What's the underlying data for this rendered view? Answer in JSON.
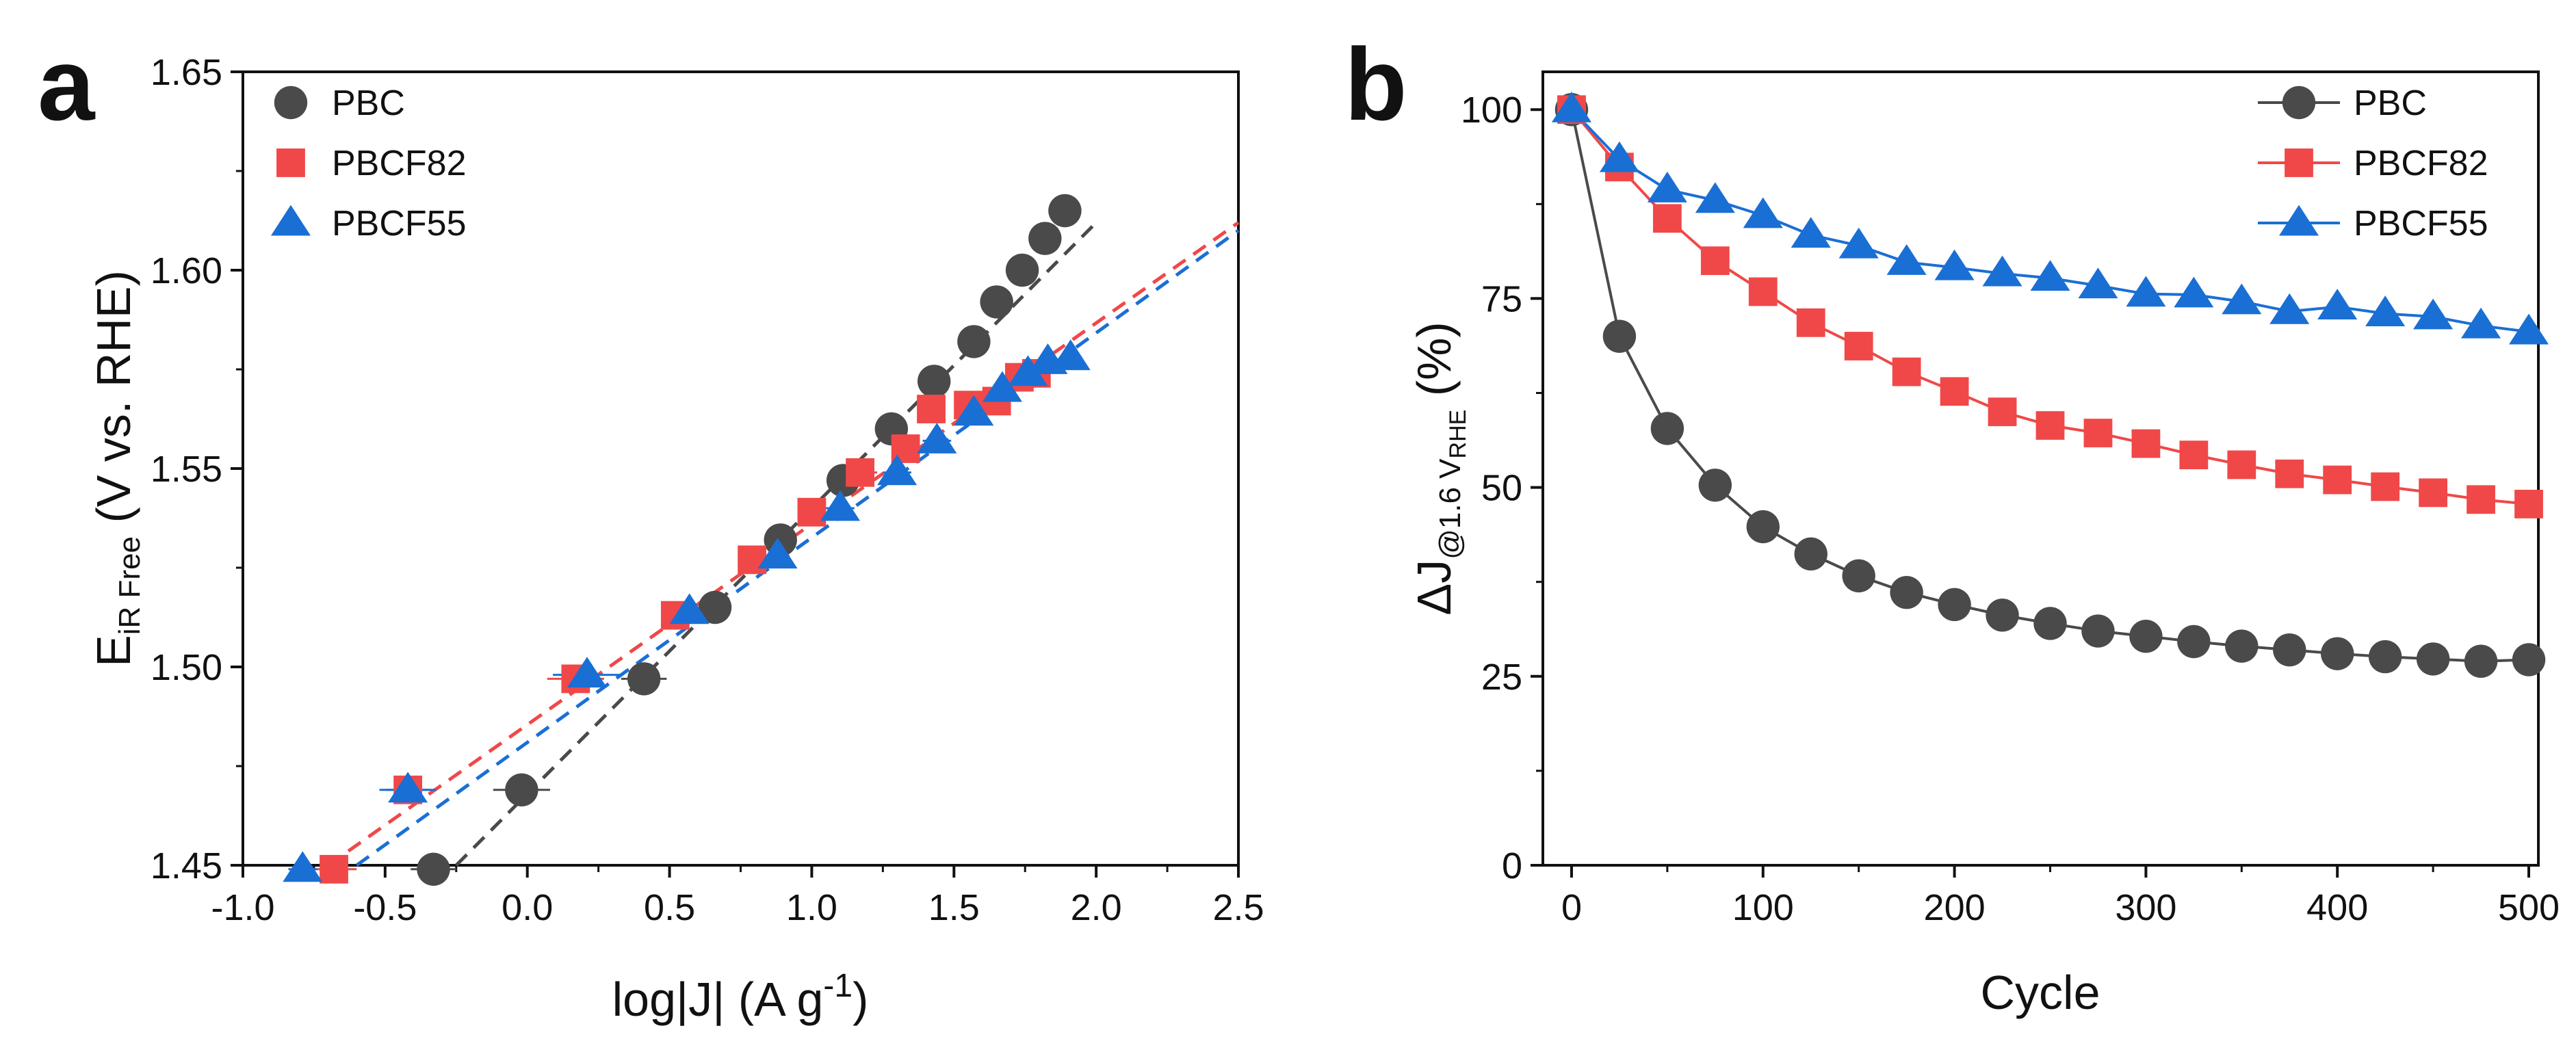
{
  "chart_data": [
    {
      "panel": "a",
      "type": "scatter",
      "title": "",
      "xlabel": {
        "main": "log|J| (A g",
        "sup": "-1",
        "end": ")"
      },
      "ylabel": {
        "main": "E",
        "sub": "iR Free",
        "end": " (V vs. RHE)"
      },
      "xlim": [
        -1.0,
        2.5
      ],
      "ylim": [
        1.45,
        1.65
      ],
      "xticks": [
        "-1.0",
        "-0.5",
        "0.0",
        "0.5",
        "1.0",
        "1.5",
        "2.0",
        "2.5"
      ],
      "yticks": [
        "1.45",
        "1.50",
        "1.55",
        "1.60",
        "1.65"
      ],
      "legend_position": "top-left",
      "series": [
        {
          "name": "PBC",
          "color": "#4a4a4a",
          "marker": "circle",
          "x": [
            -0.33,
            -0.02,
            0.41,
            0.66,
            0.89,
            1.11,
            1.28,
            1.43,
            1.57,
            1.65,
            1.74,
            1.82,
            1.89
          ],
          "y": [
            1.449,
            1.469,
            1.497,
            1.515,
            1.532,
            1.547,
            1.56,
            1.572,
            1.582,
            1.592,
            1.6,
            1.608,
            1.615
          ],
          "xerr": [
            0.08,
            0.1,
            0.08,
            0.05,
            0.04,
            0.05,
            0.05,
            0.04,
            0.04,
            0.03,
            0.03,
            0.03,
            0.03
          ],
          "fit": {
            "x": [
              -0.25,
              2.0
            ],
            "y": [
              1.45,
              1.612
            ]
          }
        },
        {
          "name": "PBCF82",
          "color": "#f04848",
          "marker": "square",
          "x": [
            -0.68,
            -0.42,
            0.17,
            0.52,
            0.79,
            1.0,
            1.17,
            1.33,
            1.42,
            1.55,
            1.65,
            1.73,
            1.79
          ],
          "y": [
            1.449,
            1.469,
            1.497,
            1.513,
            1.527,
            1.539,
            1.549,
            1.555,
            1.565,
            1.566,
            1.567,
            1.573,
            1.574
          ],
          "xerr": [
            0.08,
            0.08,
            0.1,
            0.05,
            0.04,
            0.05,
            0.06,
            0.05,
            0.05,
            0.05,
            0.04,
            0.04,
            0.04
          ],
          "fit": {
            "x": [
              -0.7,
              2.5
            ],
            "y": [
              1.45,
              1.612
            ]
          }
        },
        {
          "name": "PBCF55",
          "color": "#1a6fd4",
          "marker": "triangle",
          "x": [
            -0.79,
            -0.42,
            0.21,
            0.57,
            0.88,
            1.1,
            1.3,
            1.44,
            1.57,
            1.67,
            1.76,
            1.83,
            1.91
          ],
          "y": [
            1.449,
            1.469,
            1.498,
            1.514,
            1.528,
            1.54,
            1.549,
            1.557,
            1.564,
            1.57,
            1.574,
            1.577,
            1.578
          ],
          "xerr": [
            0.05,
            0.1,
            0.12,
            0.05,
            0.04,
            0.05,
            0.05,
            0.05,
            0.05,
            0.04,
            0.04,
            0.04,
            0.04
          ],
          "fit": {
            "x": [
              -0.6,
              2.5
            ],
            "y": [
              1.45,
              1.61
            ]
          }
        }
      ]
    },
    {
      "panel": "b",
      "type": "line",
      "title": "",
      "xlabel": {
        "main": "Cycle"
      },
      "ylabel": {
        "main": "ΔJ",
        "sub": "@1.6 V",
        "subsub": "RHE",
        "end": " (%)"
      },
      "xlim": [
        -15,
        505
      ],
      "ylim": [
        0,
        105
      ],
      "xticks": [
        "0",
        "100",
        "200",
        "300",
        "400",
        "500"
      ],
      "yticks": [
        "0",
        "25",
        "50",
        "75",
        "100"
      ],
      "legend_position": "top-right",
      "x": [
        0,
        25,
        50,
        75,
        100,
        125,
        150,
        175,
        200,
        225,
        250,
        275,
        300,
        325,
        350,
        375,
        400,
        425,
        450,
        475,
        500
      ],
      "series": [
        {
          "name": "PBC",
          "color": "#4a4a4a",
          "marker": "circle",
          "values": [
            100,
            70.0,
            57.8,
            50.3,
            44.8,
            41.2,
            38.3,
            36.1,
            34.5,
            33.1,
            32.0,
            31.0,
            30.3,
            29.6,
            29.0,
            28.5,
            28.0,
            27.6,
            27.3,
            27.0,
            27.2
          ]
        },
        {
          "name": "PBCF82",
          "color": "#f04848",
          "marker": "square",
          "values": [
            100,
            92.4,
            85.6,
            80.0,
            75.9,
            71.8,
            68.7,
            65.3,
            62.7,
            60.0,
            58.2,
            57.2,
            55.8,
            54.3,
            53.0,
            51.8,
            51.0,
            50.1,
            49.3,
            48.4,
            47.8
          ]
        },
        {
          "name": "PBCF55",
          "color": "#1a6fd4",
          "marker": "triangle",
          "values": [
            100,
            93.4,
            89.4,
            88.0,
            86.0,
            83.4,
            82.0,
            79.8,
            79.1,
            78.3,
            77.7,
            76.7,
            75.6,
            75.5,
            74.6,
            73.3,
            73.9,
            73.0,
            72.6,
            71.4,
            70.6
          ]
        }
      ]
    }
  ]
}
